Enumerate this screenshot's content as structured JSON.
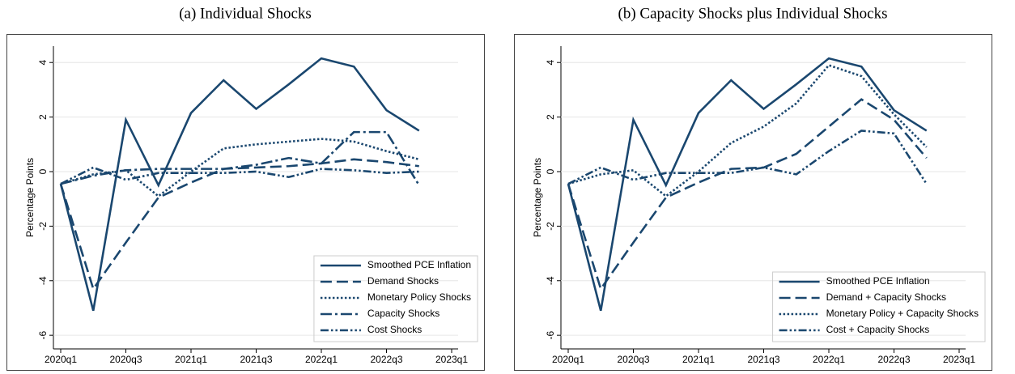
{
  "chart_data": [
    {
      "type": "line",
      "title": "(a) Individual Shocks",
      "y_label": "Percentage Points",
      "categories": [
        "2020q1",
        null,
        "2020q3",
        null,
        "2021q1",
        null,
        "2021q3",
        null,
        "2022q1",
        null,
        "2022q3",
        null,
        "2023q1"
      ],
      "ylim": [
        -6.5,
        4.6
      ],
      "yticks": [
        -6,
        -4,
        -2,
        0,
        2,
        4
      ],
      "grid": true,
      "legend": "lower right",
      "series": [
        {
          "name": "Smoothed PCE Inflation",
          "color": "#1a476f",
          "dash": "solid",
          "values": [
            -0.45,
            -5.1,
            1.9,
            -0.5,
            2.15,
            3.35,
            2.3,
            3.2,
            4.15,
            3.85,
            2.25,
            1.5,
            null
          ]
        },
        {
          "name": "Demand Shocks",
          "color": "#1a476f",
          "dash": "dashed",
          "values": [
            -0.45,
            -4.3,
            -2.6,
            -0.95,
            -0.4,
            0.1,
            0.15,
            0.2,
            0.3,
            0.45,
            0.35,
            0.2,
            null
          ]
        },
        {
          "name": "Monetary Policy Shocks",
          "color": "#1a476f",
          "dash": "dotted",
          "values": [
            -0.45,
            -0.1,
            0.05,
            -0.9,
            0.0,
            0.85,
            1.0,
            1.1,
            1.2,
            1.1,
            0.75,
            0.45,
            null
          ]
        },
        {
          "name": "Capacity Shocks",
          "color": "#1a476f",
          "dash": "dashdot",
          "values": [
            -0.45,
            -0.15,
            0.05,
            0.1,
            0.1,
            0.1,
            0.25,
            0.5,
            0.3,
            1.45,
            1.45,
            -0.5,
            null
          ]
        },
        {
          "name": "Cost Shocks",
          "color": "#1a476f",
          "dash": "dashdotdot",
          "values": [
            -0.45,
            0.15,
            -0.3,
            -0.05,
            -0.05,
            -0.05,
            0.0,
            -0.2,
            0.1,
            0.05,
            -0.05,
            0.0,
            null
          ]
        }
      ]
    },
    {
      "type": "line",
      "title": "(b) Capacity Shocks plus Individual Shocks",
      "y_label": "Percentage Points",
      "categories": [
        "2020q1",
        null,
        "2020q3",
        null,
        "2021q1",
        null,
        "2021q3",
        null,
        "2022q1",
        null,
        "2022q3",
        null,
        "2023q1"
      ],
      "ylim": [
        -6.5,
        4.6
      ],
      "yticks": [
        -6,
        -4,
        -2,
        0,
        2,
        4
      ],
      "grid": true,
      "legend": "lower right",
      "series": [
        {
          "name": "Smoothed PCE Inflation",
          "color": "#1a476f",
          "dash": "solid",
          "values": [
            -0.45,
            -5.1,
            1.9,
            -0.5,
            2.15,
            3.35,
            2.3,
            3.2,
            4.15,
            3.85,
            2.25,
            1.5,
            null
          ]
        },
        {
          "name": "Demand + Capacity Shocks",
          "color": "#1a476f",
          "dash": "dashed",
          "values": [
            -0.45,
            -4.3,
            -2.6,
            -0.95,
            -0.4,
            0.1,
            0.15,
            0.65,
            1.65,
            2.65,
            1.9,
            0.5,
            null
          ]
        },
        {
          "name": "Monetary Policy + Capacity Shocks",
          "color": "#1a476f",
          "dash": "dotted",
          "values": [
            -0.45,
            -0.1,
            0.05,
            -0.9,
            0.0,
            1.05,
            1.65,
            2.5,
            3.9,
            3.5,
            2.1,
            0.9,
            null
          ]
        },
        {
          "name": "Cost + Capacity Shocks",
          "color": "#1a476f",
          "dash": "dashdotdot",
          "values": [
            -0.45,
            0.15,
            -0.3,
            -0.05,
            -0.05,
            -0.05,
            0.15,
            -0.1,
            0.75,
            1.5,
            1.4,
            -0.45,
            null
          ]
        }
      ]
    }
  ]
}
